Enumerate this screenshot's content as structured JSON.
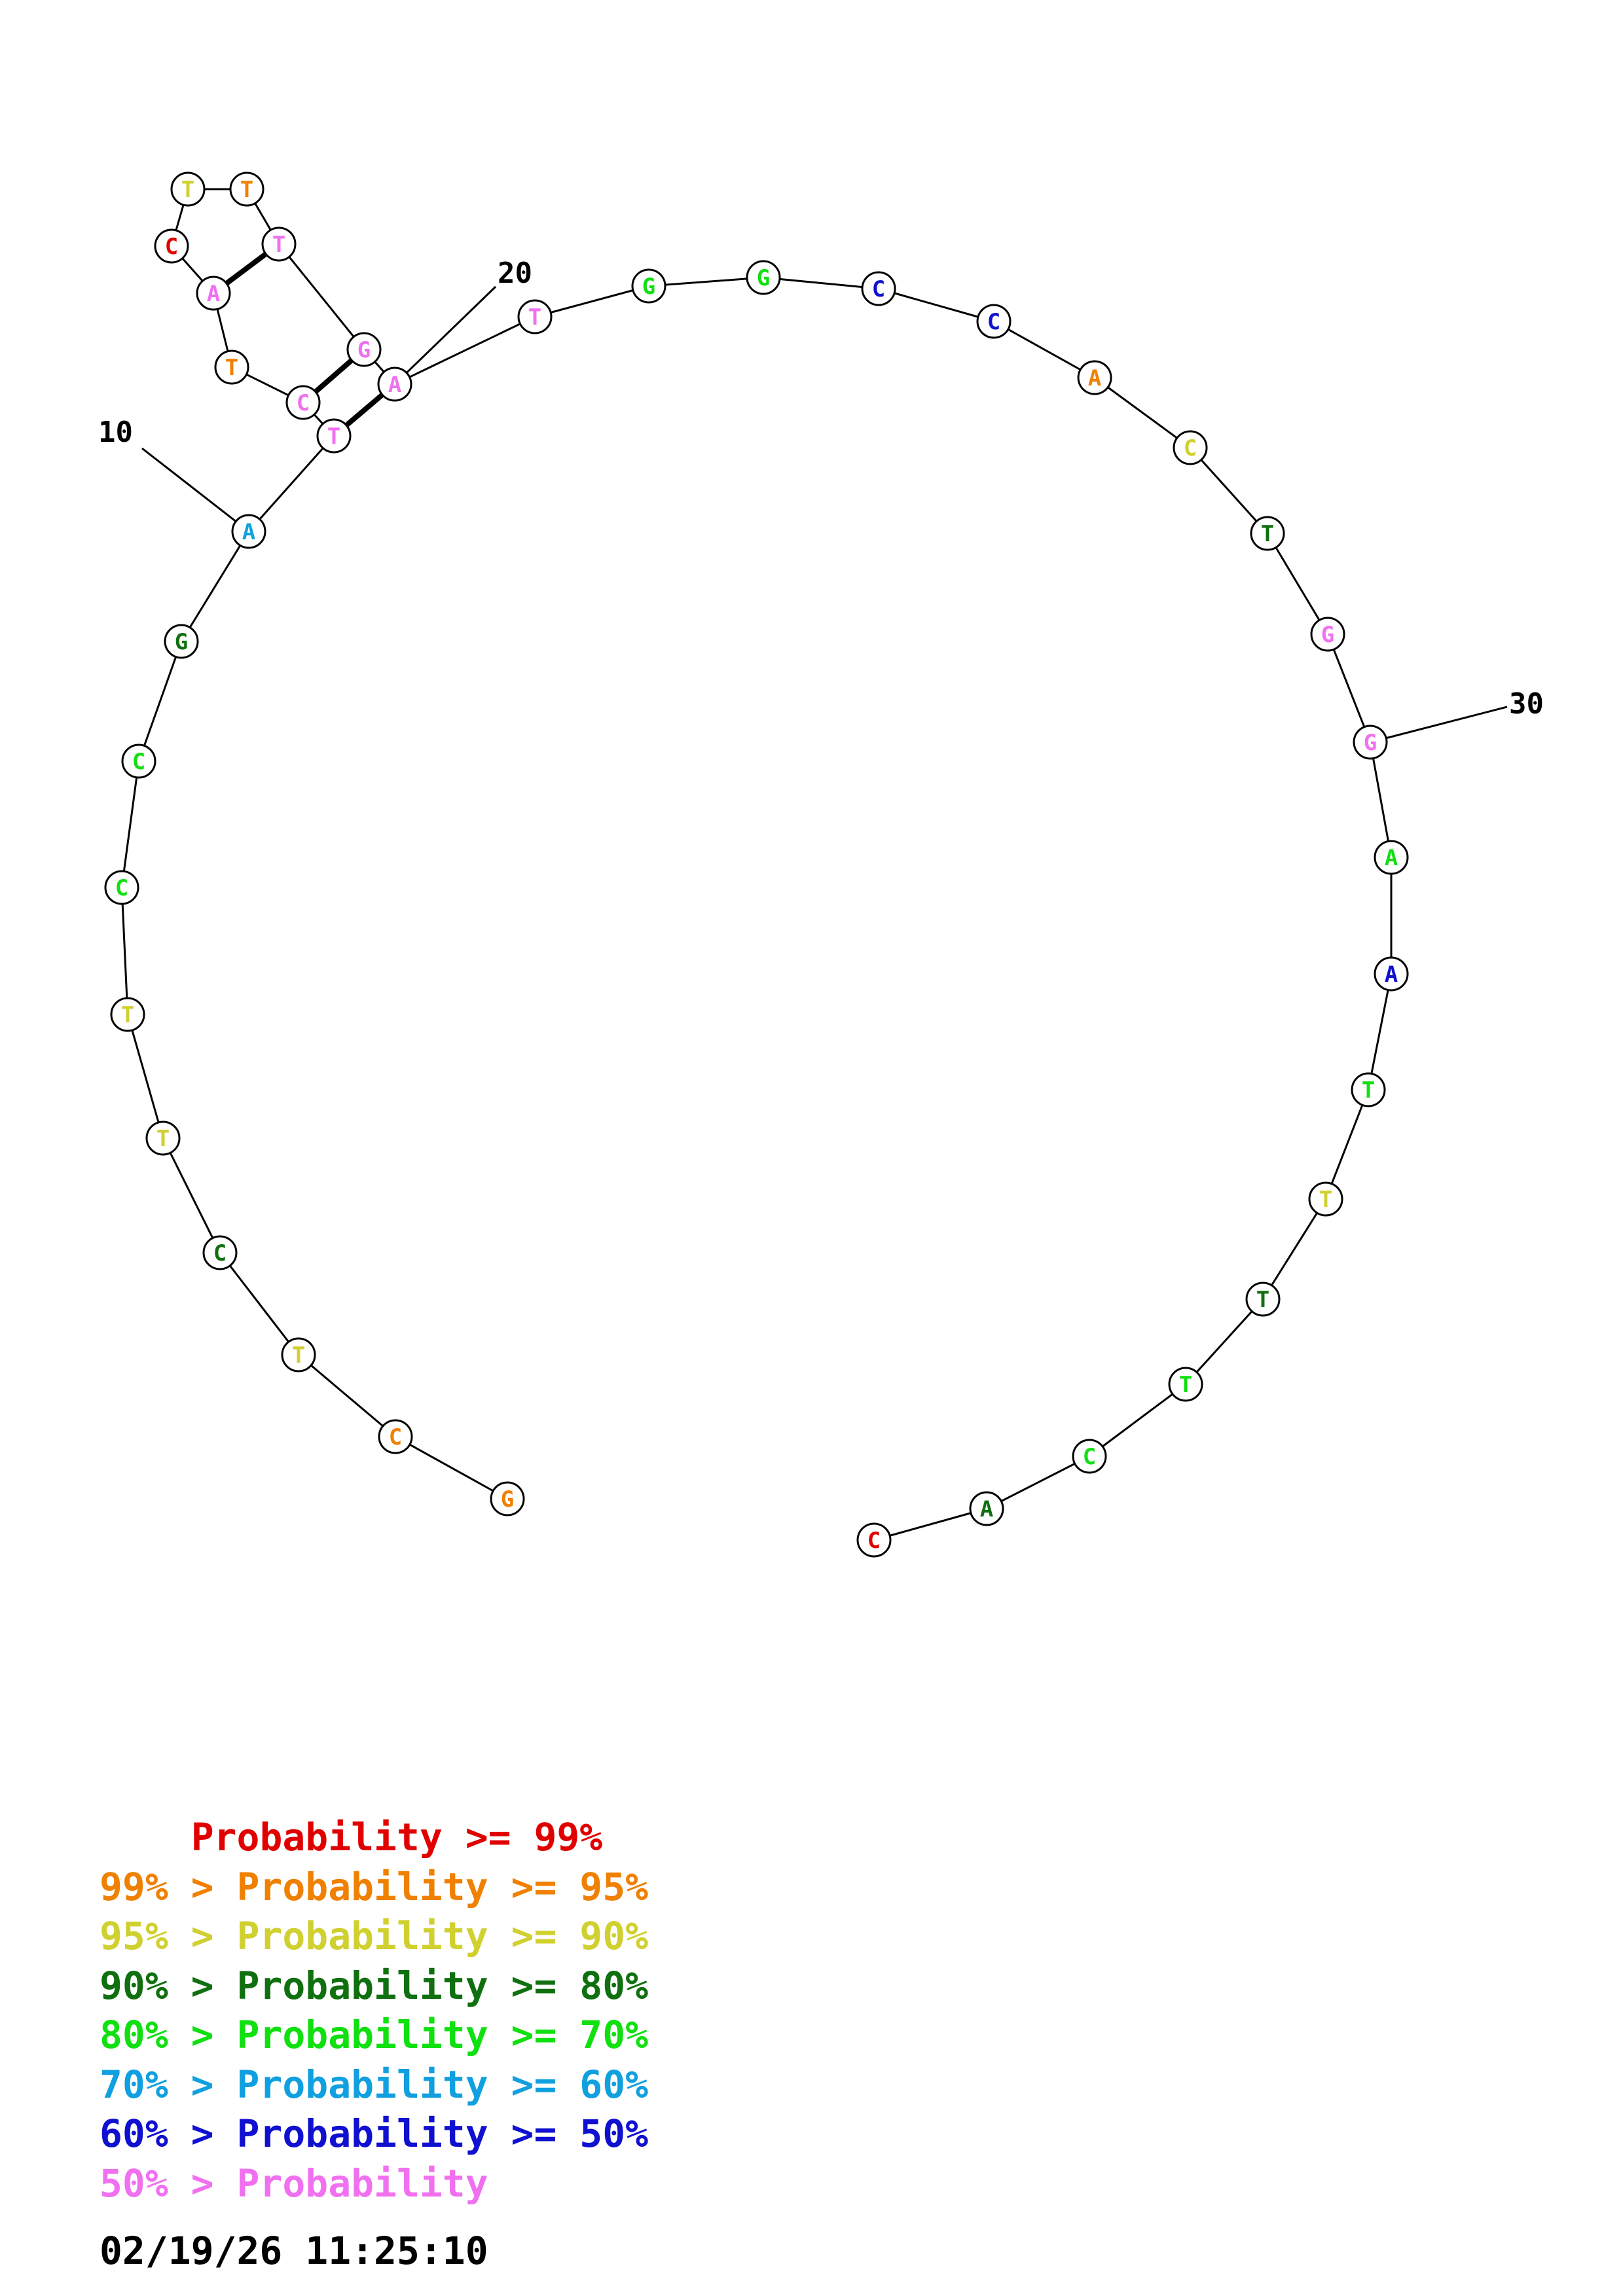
{
  "colors": {
    "red": "#e00000",
    "orange": "#f08000",
    "yellow": "#d0d030",
    "darkgreen": "#107010",
    "green": "#10e010",
    "cyan": "#10a0e0",
    "blue": "#1010d0",
    "pink": "#f070f0"
  },
  "nucleotides": [
    {
      "index": 1,
      "base": "G",
      "color": "orange"
    },
    {
      "index": 2,
      "base": "C",
      "color": "orange"
    },
    {
      "index": 3,
      "base": "T",
      "color": "yellow"
    },
    {
      "index": 4,
      "base": "C",
      "color": "darkgreen"
    },
    {
      "index": 5,
      "base": "T",
      "color": "yellow"
    },
    {
      "index": 6,
      "base": "T",
      "color": "yellow"
    },
    {
      "index": 7,
      "base": "C",
      "color": "green"
    },
    {
      "index": 8,
      "base": "C",
      "color": "green"
    },
    {
      "index": 9,
      "base": "G",
      "color": "darkgreen"
    },
    {
      "index": 10,
      "base": "A",
      "color": "cyan"
    },
    {
      "index": 11,
      "base": "T",
      "color": "pink"
    },
    {
      "index": 12,
      "base": "C",
      "color": "pink"
    },
    {
      "index": 13,
      "base": "T",
      "color": "orange"
    },
    {
      "index": 14,
      "base": "A",
      "color": "pink"
    },
    {
      "index": 15,
      "base": "C",
      "color": "red"
    },
    {
      "index": 16,
      "base": "T",
      "color": "yellow"
    },
    {
      "index": 17,
      "base": "T",
      "color": "orange"
    },
    {
      "index": 18,
      "base": "T",
      "color": "pink"
    },
    {
      "index": 19,
      "base": "G",
      "color": "pink"
    },
    {
      "index": 20,
      "base": "A",
      "color": "pink"
    },
    {
      "index": 21,
      "base": "T",
      "color": "pink"
    },
    {
      "index": 22,
      "base": "G",
      "color": "green"
    },
    {
      "index": 23,
      "base": "G",
      "color": "green"
    },
    {
      "index": 24,
      "base": "C",
      "color": "blue"
    },
    {
      "index": 25,
      "base": "C",
      "color": "blue"
    },
    {
      "index": 26,
      "base": "A",
      "color": "orange"
    },
    {
      "index": 27,
      "base": "C",
      "color": "yellow"
    },
    {
      "index": 28,
      "base": "T",
      "color": "darkgreen"
    },
    {
      "index": 29,
      "base": "G",
      "color": "pink"
    },
    {
      "index": 30,
      "base": "G",
      "color": "pink"
    },
    {
      "index": 31,
      "base": "A",
      "color": "green"
    },
    {
      "index": 32,
      "base": "A",
      "color": "blue"
    },
    {
      "index": 33,
      "base": "T",
      "color": "green"
    },
    {
      "index": 34,
      "base": "T",
      "color": "yellow"
    },
    {
      "index": 35,
      "base": "T",
      "color": "darkgreen"
    },
    {
      "index": 36,
      "base": "T",
      "color": "green"
    },
    {
      "index": 37,
      "base": "C",
      "color": "green"
    },
    {
      "index": 38,
      "base": "A",
      "color": "darkgreen"
    },
    {
      "index": 39,
      "base": "C",
      "color": "red"
    }
  ],
  "base_pairs": [
    [
      11,
      20
    ],
    [
      12,
      19
    ],
    [
      14,
      18
    ]
  ],
  "tick_labels": [
    {
      "index": 10,
      "text": "10"
    },
    {
      "index": 20,
      "text": "20"
    },
    {
      "index": 30,
      "text": "30"
    }
  ],
  "legend": [
    {
      "prefix": "    ",
      "text": "Probability >= 99%",
      "color": "red"
    },
    {
      "prefix": "99% > ",
      "text": "Probability >= 95%",
      "color": "orange"
    },
    {
      "prefix": "95% > ",
      "text": "Probability >= 90%",
      "color": "yellow"
    },
    {
      "prefix": "90% > ",
      "text": "Probability >= 80%",
      "color": "darkgreen"
    },
    {
      "prefix": "80% > ",
      "text": "Probability >= 70%",
      "color": "green"
    },
    {
      "prefix": "70% > ",
      "text": "Probability >= 60%",
      "color": "cyan"
    },
    {
      "prefix": "60% > ",
      "text": "Probability >= 50%",
      "color": "blue"
    },
    {
      "prefix": "50% > ",
      "text": "Probability",
      "color": "pink"
    }
  ],
  "timestamp": "02/19/26 11:25:10"
}
